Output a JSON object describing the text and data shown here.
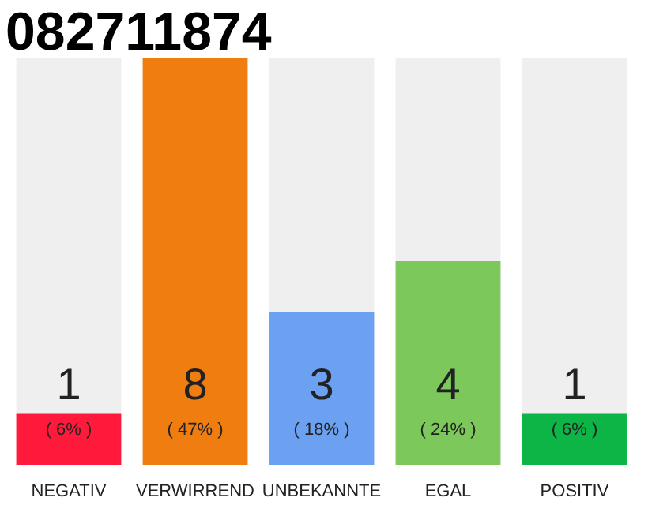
{
  "chart_data": {
    "type": "bar",
    "title": "082711874",
    "categories": [
      "NEGATIV",
      "VERWIRREND",
      "UNBEKANNTE",
      "EGAL",
      "POSITIV"
    ],
    "values": [
      1,
      8,
      3,
      4,
      1
    ],
    "colors": [
      "#ff1a3c",
      "#f07d0f",
      "#6ca0f0",
      "#7dc85a",
      "#0db446"
    ],
    "value_labels": [
      "1",
      "8",
      "3",
      "4",
      "1"
    ],
    "annotations": [
      "( 6% )",
      "( 47% )",
      "( 18% )",
      "( 24% )",
      "( 6% )"
    ],
    "tick_labels": "x"
  }
}
